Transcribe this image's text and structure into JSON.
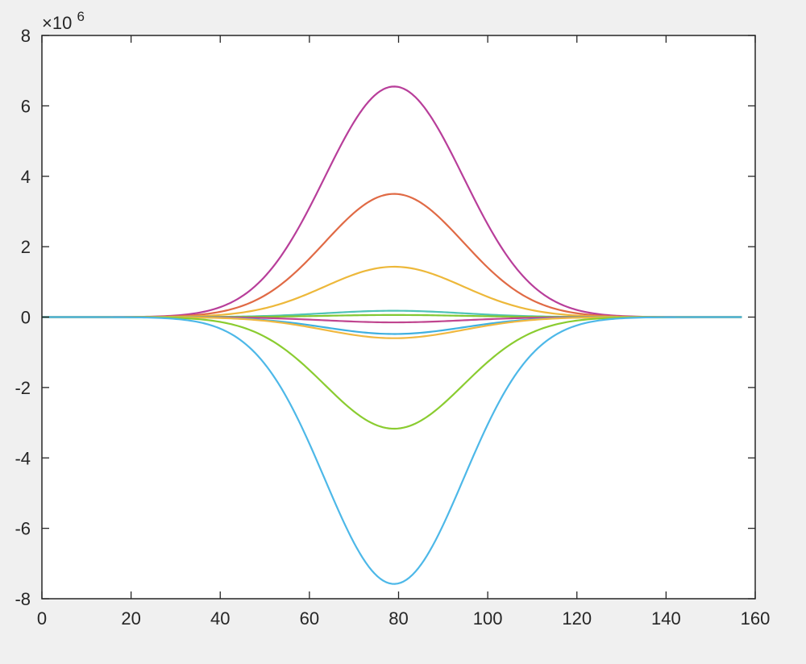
{
  "chart_data": {
    "type": "line",
    "title": "",
    "xlabel": "",
    "ylabel": "",
    "xlim": [
      0,
      160
    ],
    "ylim": [
      -8000000,
      8000000
    ],
    "grid": false,
    "legend": null,
    "x_ticks": [
      0,
      20,
      40,
      60,
      80,
      100,
      120,
      140,
      160
    ],
    "y_ticks": [
      -8,
      -6,
      -4,
      -2,
      0,
      2,
      4,
      6,
      8
    ],
    "y_tick_labels": [
      "-8",
      "-6",
      "-4",
      "-2",
      "0",
      "2",
      "4",
      "6",
      "8"
    ],
    "x_tick_labels": [
      "0",
      "20",
      "40",
      "60",
      "80",
      "100",
      "120",
      "140",
      "160"
    ],
    "y_exponent_label": {
      "base": "×10",
      "power": "6"
    },
    "curve_shape": {
      "kind": "bell",
      "x_start": 0,
      "x_end": 157,
      "center": 79,
      "width": 22
    },
    "series": [
      {
        "color": "#b83e9a",
        "peak": 6550000
      },
      {
        "color": "#e06a45",
        "peak": 3500000
      },
      {
        "color": "#edb83a",
        "peak": 1430000
      },
      {
        "color": "#4fc3b5",
        "peak": 180000
      },
      {
        "color": "#82c832",
        "peak": 60000
      },
      {
        "color": "#c0458f",
        "peak": -150000
      },
      {
        "color": "#3fb0e0",
        "peak": -480000
      },
      {
        "color": "#f0b840",
        "peak": -600000
      },
      {
        "color": "#8acc30",
        "peak": -3170000
      },
      {
        "color": "#4db8e8",
        "peak": -7580000
      }
    ]
  }
}
